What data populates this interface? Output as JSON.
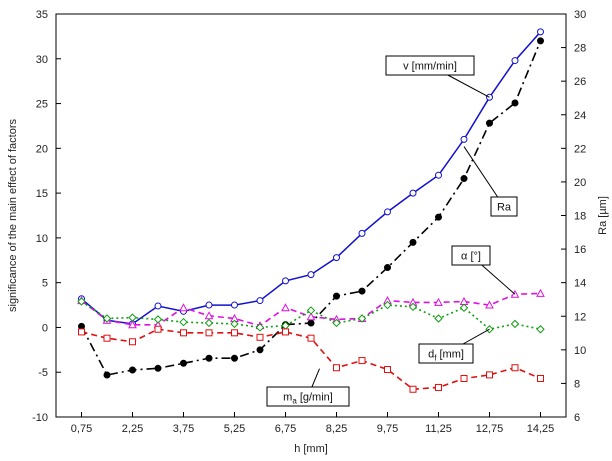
{
  "chart_data": {
    "type": "line",
    "xlabel": "h [mm]",
    "ylabel": "significance of the main effect of factors",
    "y2label": "Ra [µm]",
    "x_ticks": [
      "0,75",
      "2,25",
      "3,75",
      "5,25",
      "6,75",
      "8,25",
      "9,75",
      "11,25",
      "12,75",
      "14,25"
    ],
    "x_tick_values": [
      0.75,
      2.25,
      3.75,
      5.25,
      6.75,
      8.25,
      9.75,
      11.25,
      12.75,
      14.25
    ],
    "xlim": [
      0,
      15
    ],
    "ylim": [
      -10,
      35
    ],
    "y_ticks": [
      -10,
      -5,
      0,
      5,
      10,
      15,
      20,
      25,
      30,
      35
    ],
    "y2lim": [
      6,
      30
    ],
    "y2_ticks": [
      6,
      8,
      10,
      12,
      14,
      16,
      18,
      20,
      22,
      24,
      26,
      28,
      30
    ],
    "grid": false,
    "x": [
      0.75,
      1.5,
      2.25,
      3.0,
      3.75,
      4.5,
      5.25,
      6.0,
      6.75,
      7.5,
      8.25,
      9.0,
      9.75,
      10.5,
      11.25,
      12.0,
      12.75,
      13.5,
      14.25
    ],
    "series": [
      {
        "name": "v [mm/min]",
        "axis": "left",
        "color": "#1010d0",
        "line_style": "solid",
        "marker": "circle-open",
        "values": [
          3.2,
          0.8,
          0.4,
          2.4,
          1.8,
          2.5,
          2.5,
          3.0,
          5.2,
          5.9,
          7.8,
          10.5,
          12.9,
          15.0,
          17.0,
          21.0,
          25.7,
          29.8,
          33.0
        ]
      },
      {
        "name": "Ra",
        "axis": "right",
        "color": "#000000",
        "line_style": "dash-dot",
        "marker": "circle-filled",
        "values": [
          11.4,
          8.5,
          8.8,
          8.9,
          9.2,
          9.5,
          9.5,
          10.0,
          11.5,
          11.6,
          13.2,
          13.5,
          14.9,
          16.4,
          17.9,
          20.2,
          23.5,
          24.7,
          28.4
        ]
      },
      {
        "name": "α [°]",
        "axis": "left",
        "color": "#e010e0",
        "line_style": "dashed",
        "marker": "triangle-open",
        "values": [
          3.0,
          0.8,
          0.3,
          0.3,
          2.2,
          1.3,
          1.0,
          0.2,
          2.2,
          1.2,
          0.9,
          1.0,
          3.0,
          2.8,
          2.8,
          2.9,
          2.5,
          3.7,
          3.8
        ]
      },
      {
        "name": "df [mm]",
        "axis": "left",
        "color": "#10a010",
        "line_style": "dotted",
        "marker": "diamond-open",
        "values": [
          2.9,
          1.0,
          1.1,
          0.9,
          0.6,
          0.5,
          0.4,
          0.0,
          0.2,
          1.9,
          0.5,
          1.0,
          2.5,
          2.3,
          1.0,
          2.2,
          -0.2,
          0.4,
          -0.2
        ]
      },
      {
        "name": "ma [g/min]",
        "axis": "left",
        "color": "#e01010",
        "line_style": "dashed",
        "marker": "square-open",
        "values": [
          -0.5,
          -1.2,
          -1.6,
          -0.2,
          -0.6,
          -0.6,
          -0.6,
          -1.1,
          -0.5,
          -1.2,
          -4.5,
          -3.7,
          -4.7,
          -6.9,
          -6.7,
          -5.7,
          -5.3,
          -4.5,
          -5.7
        ]
      }
    ],
    "annotations": [
      {
        "label": "v [mm/min]",
        "points_to": {
          "x": 12.75,
          "y": 25.7
        }
      },
      {
        "label": "Ra",
        "points_to": {
          "x": 12.0,
          "y": 20.2
        }
      },
      {
        "label": "α [°]",
        "points_to": {
          "x": 13.5,
          "y": 3.7
        }
      },
      {
        "label_main": "d",
        "label_sub": "f",
        "label_suffix": " [mm]",
        "points_to": {
          "x": 12.75,
          "y": -0.2
        }
      },
      {
        "label_main": "m",
        "label_sub": "a",
        "label_suffix": " [g/min]",
        "points_to": {
          "x": 7.75,
          "y": -4.6
        }
      }
    ]
  }
}
